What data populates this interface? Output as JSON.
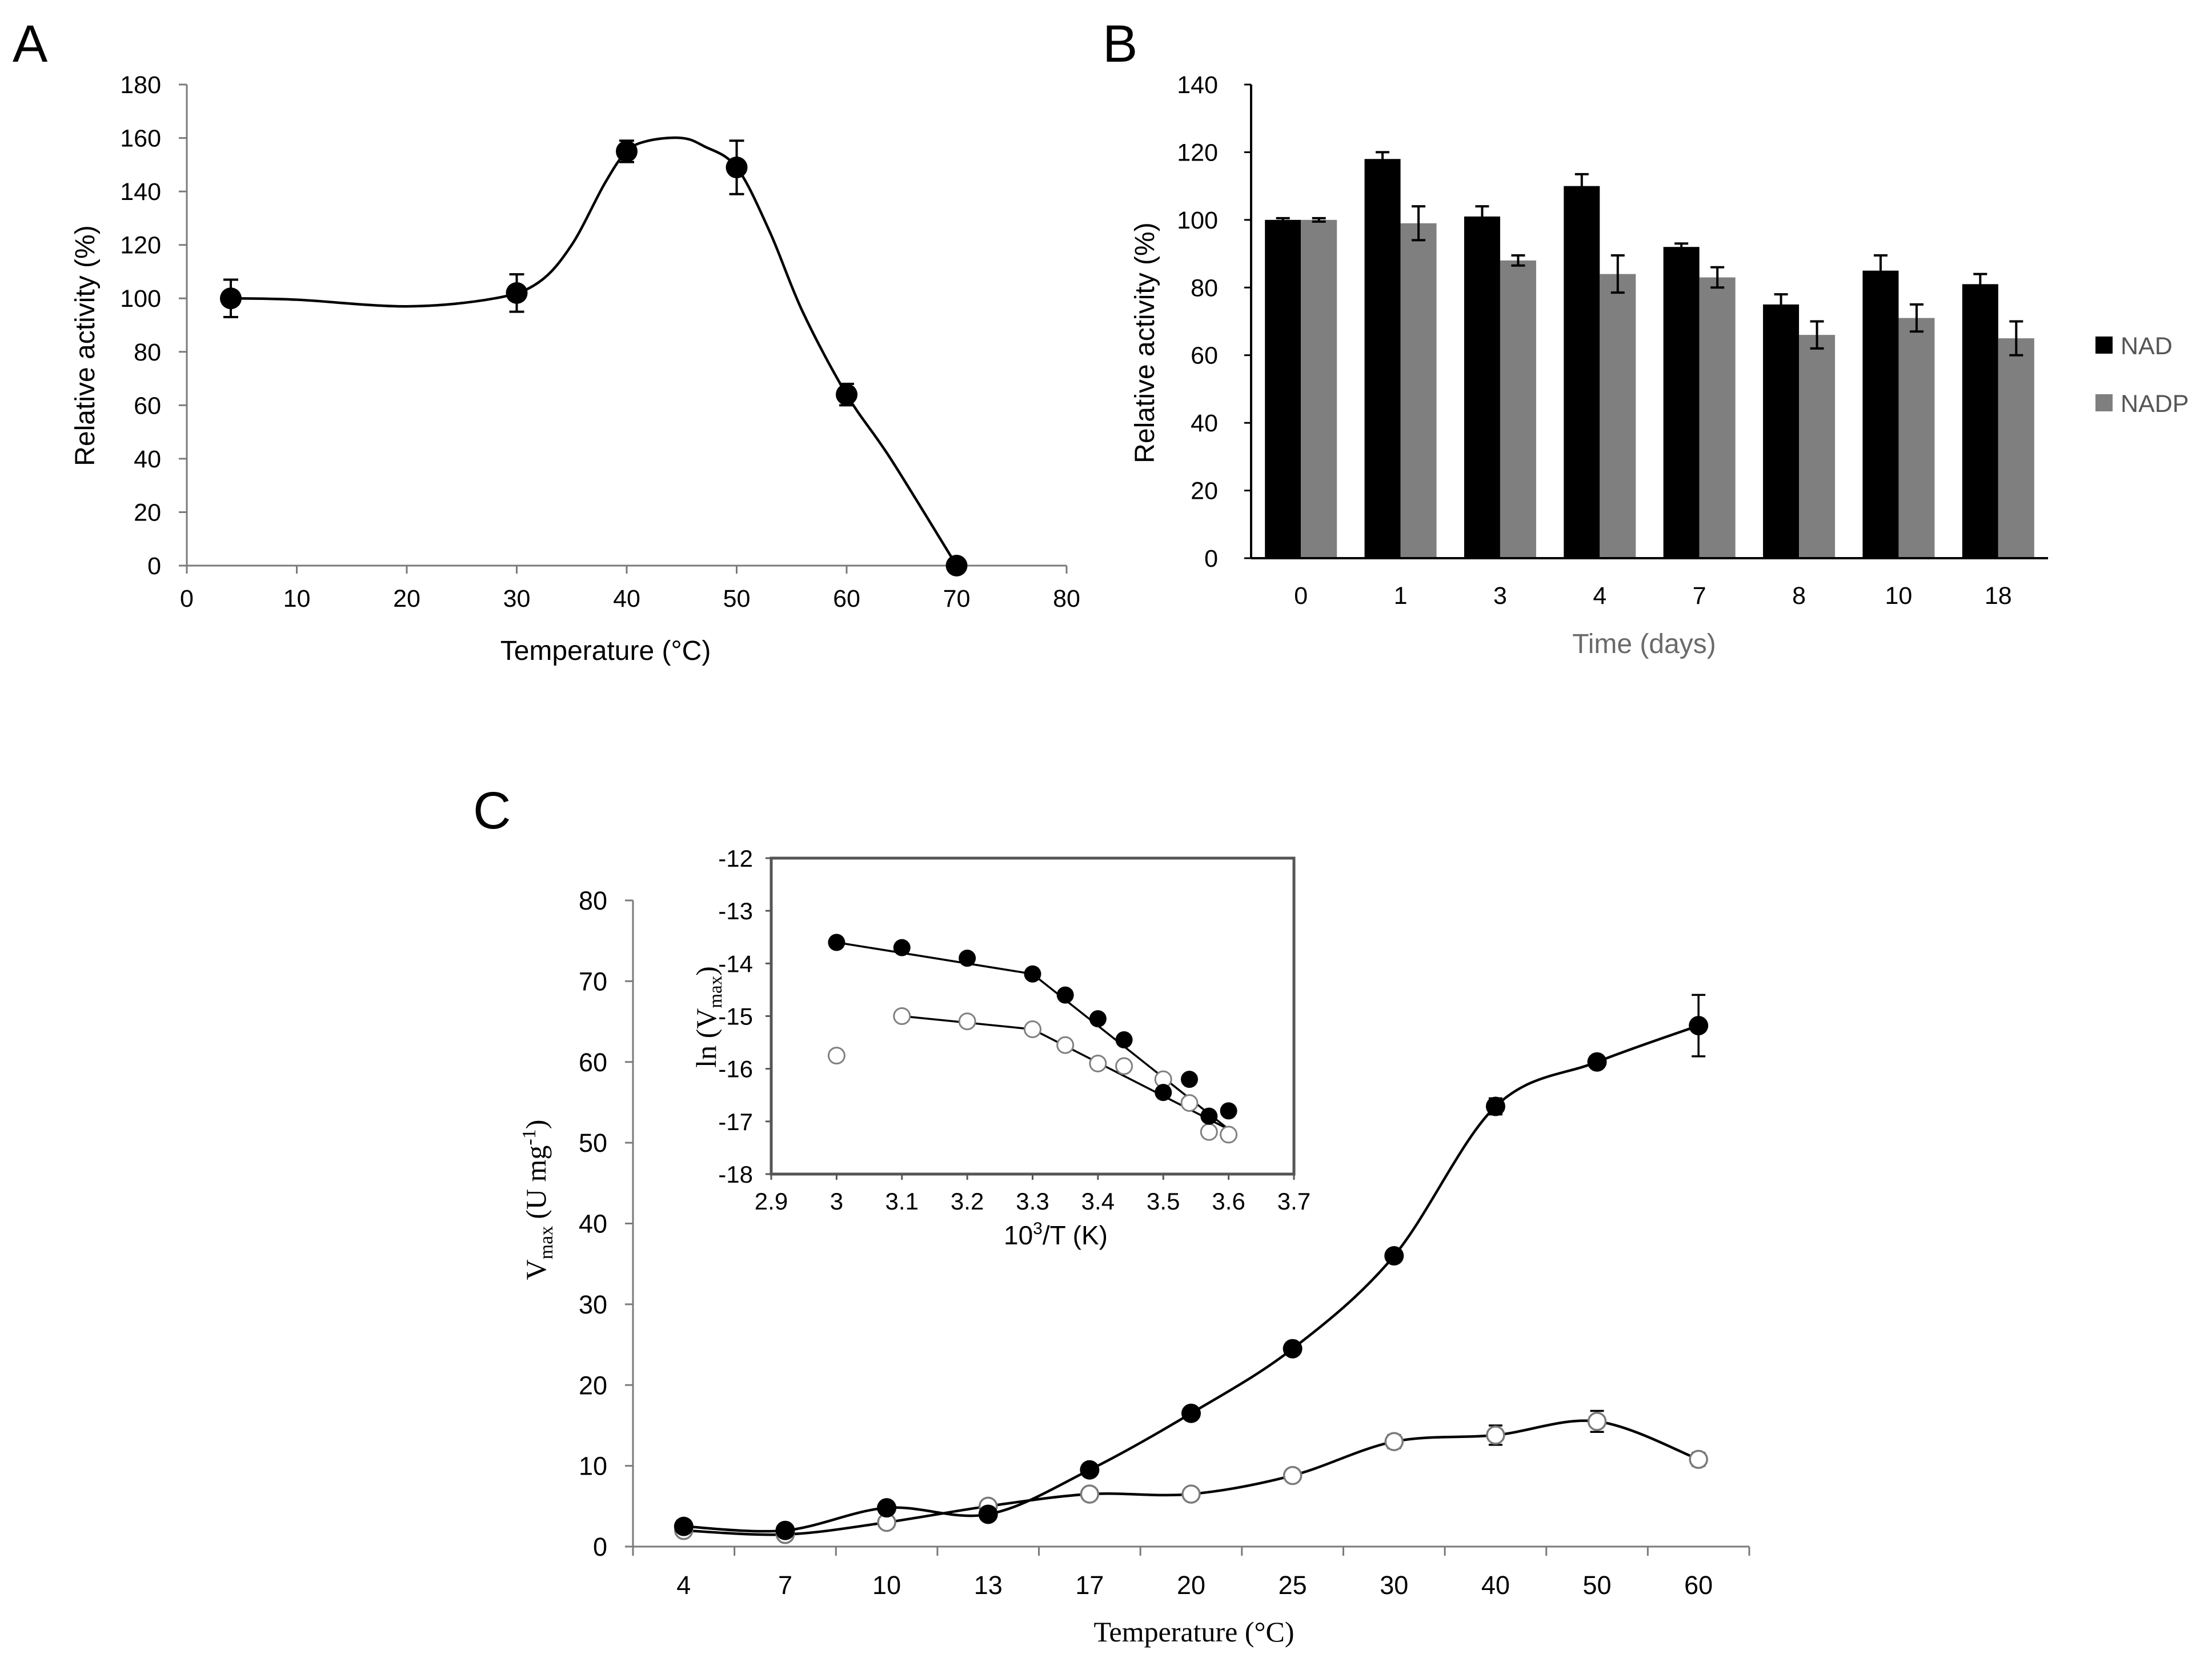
{
  "panels": {
    "A": {
      "label": "A"
    },
    "B": {
      "label": "B"
    },
    "C": {
      "label": "C"
    }
  },
  "colors": {
    "ink": "#000000",
    "nadp_bar": "#7f7f7f",
    "open_marker_edge": "#808080"
  },
  "chart_data": [
    {
      "id": "A",
      "type": "line",
      "title": "",
      "xlabel": "Temperature (°C)",
      "ylabel": "Relative activity (%)",
      "xlim": [
        0,
        80
      ],
      "ylim": [
        0,
        180
      ],
      "xticks": [
        "0",
        "10",
        "20",
        "30",
        "40",
        "50",
        "60",
        "70",
        "80"
      ],
      "yticks": [
        "0",
        "20",
        "40",
        "60",
        "80",
        "100",
        "120",
        "140",
        "160",
        "180"
      ],
      "grid": false,
      "series": [
        {
          "name": "activity",
          "marker": "filled-circle",
          "x": [
            4,
            30,
            40,
            50,
            60,
            70
          ],
          "y": [
            100,
            102,
            155,
            149,
            64,
            0
          ],
          "err": [
            7,
            7,
            4,
            10,
            4,
            0
          ]
        }
      ],
      "smooth_curve": {
        "x": [
          4,
          10,
          20,
          28,
          32,
          35,
          38,
          40,
          42,
          45,
          47,
          50,
          53,
          56,
          60,
          64,
          70
        ],
        "y": [
          100,
          99.5,
          97,
          100,
          106,
          120,
          143,
          155,
          159,
          160,
          157,
          149,
          125,
          95,
          64,
          40,
          0
        ]
      }
    },
    {
      "id": "B",
      "type": "bar",
      "title": "",
      "xlabel": "Time (days)",
      "ylabel": "Relative activity (%)",
      "ylim": [
        0,
        140
      ],
      "yticks": [
        "0",
        "20",
        "40",
        "60",
        "80",
        "100",
        "120",
        "140"
      ],
      "categories": [
        "0",
        "1",
        "3",
        "4",
        "7",
        "8",
        "10",
        "18"
      ],
      "legend_position": "right",
      "series": [
        {
          "name": "NAD",
          "color": "#000000",
          "values": [
            100,
            118,
            101,
            110,
            92,
            75,
            85,
            81
          ],
          "err": [
            0.5,
            2,
            3,
            3.5,
            1,
            3,
            4.5,
            3
          ]
        },
        {
          "name": "NADP",
          "color": "#7f7f7f",
          "values": [
            100,
            99,
            88,
            84,
            83,
            66,
            71,
            65
          ],
          "err": [
            0.5,
            5,
            1.5,
            5.5,
            3,
            4,
            4,
            5
          ]
        }
      ]
    },
    {
      "id": "C",
      "type": "line",
      "title": "",
      "xlabel": "Temperature (°C)",
      "ylabel_main": "V",
      "ylabel_sub": "max",
      "ylabel_unit": "(U mg",
      "ylabel_sup": "-1",
      "ylabel_close": ")",
      "ylim": [
        0,
        80
      ],
      "yticks": [
        "0",
        "10",
        "20",
        "30",
        "40",
        "50",
        "60",
        "70",
        "80"
      ],
      "categories": [
        "4",
        "7",
        "10",
        "13",
        "17",
        "20",
        "25",
        "30",
        "40",
        "50",
        "60"
      ],
      "series": [
        {
          "name": "NAD",
          "marker": "filled-circle",
          "values": [
            2.5,
            2,
            4.8,
            4,
            9.5,
            16.5,
            24.5,
            36,
            54.5,
            60,
            64.5
          ],
          "err": [
            0,
            0,
            0,
            0,
            0,
            0,
            0,
            0,
            1,
            0,
            3.8
          ]
        },
        {
          "name": "NADP",
          "marker": "open-circle",
          "values": [
            2,
            1.5,
            3,
            5,
            6.5,
            6.5,
            8.8,
            13,
            13.8,
            15.5,
            10.8
          ],
          "err": [
            0,
            0,
            0,
            0,
            0,
            0,
            0,
            0.8,
            1.2,
            1.3,
            0.8
          ]
        }
      ],
      "inset": {
        "type": "scatter",
        "xlabel_pre": "10",
        "xlabel_sup": "3",
        "xlabel_post": "/T (K)",
        "ylabel_pre": "ln (V",
        "ylabel_sub": "max",
        "ylabel_post": ")",
        "xlim": [
          2.9,
          3.7
        ],
        "ylim": [
          -18,
          -12
        ],
        "xticks": [
          "2.9",
          "3",
          "3.1",
          "3.2",
          "3.3",
          "3.4",
          "3.5",
          "3.6",
          "3.7"
        ],
        "yticks": [
          "-18",
          "-17",
          "-16",
          "-15",
          "-14",
          "-13",
          "-12"
        ],
        "series": [
          {
            "name": "NAD",
            "marker": "filled-circle",
            "x": [
              3.0,
              3.1,
              3.2,
              3.3,
              3.35,
              3.4,
              3.44,
              3.5,
              3.54,
              3.57,
              3.6
            ],
            "y": [
              -13.6,
              -13.7,
              -13.9,
              -14.2,
              -14.6,
              -15.05,
              -15.45,
              -16.45,
              -16.2,
              -16.9,
              -16.8
            ]
          },
          {
            "name": "NADP",
            "marker": "open-circle",
            "x": [
              3.0,
              3.1,
              3.2,
              3.3,
              3.35,
              3.4,
              3.44,
              3.5,
              3.54,
              3.57,
              3.6
            ],
            "y": [
              -15.75,
              -15.0,
              -15.1,
              -15.25,
              -15.55,
              -15.9,
              -15.95,
              -16.2,
              -16.65,
              -17.2,
              -17.25
            ]
          }
        ],
        "fit_lines": [
          {
            "series": "NAD",
            "segments": [
              [
                [
                  3.0,
                  -13.6
                ],
                [
                  3.3,
                  -14.2
                ]
              ],
              [
                [
                  3.3,
                  -14.2
                ],
                [
                  3.6,
                  -17.15
                ]
              ]
            ]
          },
          {
            "series": "NADP",
            "segments": [
              [
                [
                  3.1,
                  -15.0
                ],
                [
                  3.3,
                  -15.25
                ]
              ],
              [
                [
                  3.3,
                  -15.25
                ],
                [
                  3.6,
                  -17.15
                ]
              ]
            ]
          }
        ]
      }
    }
  ]
}
